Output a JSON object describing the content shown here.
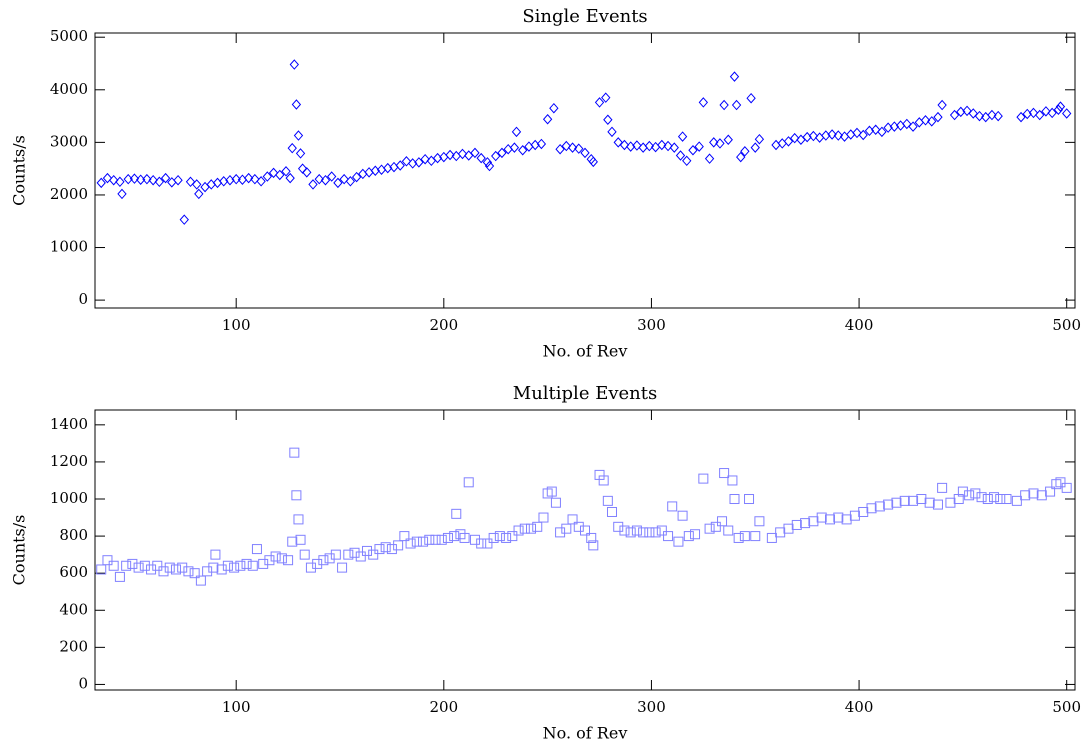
{
  "chart_data": [
    {
      "type": "scatter",
      "title": "Single Events",
      "xlabel": "No. of Rev",
      "ylabel": "Counts/s",
      "color": "#0000ff",
      "marker": "diamond",
      "xlim": [
        32,
        504
      ],
      "xticks": [
        100,
        200,
        300,
        400,
        500
      ],
      "ylim": [
        -150,
        5080
      ],
      "yticks": [
        0,
        1000,
        2000,
        3000,
        4000,
        5000
      ],
      "x": [
        35,
        38,
        41,
        44,
        45,
        48,
        51,
        54,
        57,
        60,
        63,
        66,
        69,
        72,
        75,
        78,
        81,
        82,
        85,
        88,
        91,
        94,
        97,
        100,
        103,
        106,
        109,
        112,
        115,
        118,
        121,
        124,
        126,
        127,
        128,
        129,
        130,
        131,
        132,
        134,
        137,
        140,
        143,
        146,
        149,
        152,
        155,
        158,
        161,
        164,
        167,
        170,
        173,
        176,
        179,
        182,
        185,
        188,
        191,
        194,
        197,
        200,
        203,
        206,
        209,
        212,
        215,
        218,
        221,
        222,
        225,
        228,
        231,
        234,
        235,
        238,
        241,
        244,
        247,
        250,
        253,
        256,
        259,
        262,
        265,
        268,
        271,
        272,
        275,
        278,
        279,
        281,
        284,
        287,
        290,
        293,
        296,
        299,
        302,
        305,
        308,
        311,
        314,
        315,
        317,
        320,
        323,
        325,
        328,
        330,
        333,
        335,
        337,
        340,
        341,
        343,
        345,
        348,
        350,
        352,
        360,
        363,
        366,
        369,
        372,
        375,
        378,
        381,
        384,
        387,
        390,
        393,
        396,
        399,
        402,
        405,
        408,
        411,
        414,
        417,
        420,
        423,
        426,
        429,
        432,
        435,
        438,
        440,
        446,
        449,
        452,
        455,
        458,
        461,
        464,
        467,
        478,
        481,
        484,
        487,
        490,
        493,
        496,
        497,
        500
      ],
      "values": [
        2230,
        2320,
        2280,
        2250,
        2020,
        2300,
        2310,
        2290,
        2300,
        2280,
        2250,
        2320,
        2240,
        2280,
        1530,
        2250,
        2200,
        2020,
        2150,
        2200,
        2230,
        2260,
        2280,
        2300,
        2290,
        2320,
        2300,
        2260,
        2350,
        2420,
        2380,
        2450,
        2320,
        2890,
        4480,
        3720,
        3130,
        2790,
        2500,
        2430,
        2200,
        2300,
        2280,
        2350,
        2230,
        2300,
        2260,
        2340,
        2400,
        2430,
        2460,
        2480,
        2510,
        2530,
        2560,
        2640,
        2600,
        2620,
        2680,
        2650,
        2700,
        2720,
        2760,
        2740,
        2780,
        2750,
        2800,
        2700,
        2620,
        2550,
        2740,
        2800,
        2870,
        2900,
        3200,
        2850,
        2920,
        2950,
        2970,
        3440,
        3650,
        2870,
        2930,
        2900,
        2880,
        2800,
        2680,
        2630,
        3760,
        3850,
        3430,
        3200,
        3000,
        2950,
        2920,
        2940,
        2900,
        2930,
        2910,
        2950,
        2930,
        2900,
        2750,
        3110,
        2650,
        2850,
        2920,
        3760,
        2690,
        3000,
        2980,
        3710,
        3050,
        4250,
        3710,
        2720,
        2830,
        3840,
        2900,
        3060,
        2950,
        2980,
        3020,
        3080,
        3050,
        3100,
        3120,
        3090,
        3130,
        3150,
        3130,
        3110,
        3150,
        3180,
        3140,
        3220,
        3240,
        3200,
        3280,
        3300,
        3320,
        3350,
        3300,
        3380,
        3420,
        3400,
        3480,
        3710,
        3520,
        3580,
        3600,
        3550,
        3500,
        3480,
        3520,
        3500,
        3480,
        3540,
        3560,
        3520,
        3590,
        3560,
        3620,
        3680,
        3550
      ]
    },
    {
      "type": "scatter",
      "title": "Multiple Events",
      "xlabel": "No. of Rev",
      "ylabel": "Counts/s",
      "color": "#8080ff",
      "marker": "square",
      "xlim": [
        32,
        504
      ],
      "xticks": [
        100,
        200,
        300,
        400,
        500
      ],
      "ylim": [
        -30,
        1480
      ],
      "yticks": [
        0,
        200,
        400,
        600,
        800,
        1000,
        1200,
        1400
      ],
      "x": [
        35,
        38,
        41,
        44,
        47,
        50,
        53,
        56,
        59,
        62,
        65,
        68,
        71,
        74,
        77,
        80,
        83,
        86,
        89,
        90,
        93,
        96,
        99,
        102,
        105,
        108,
        110,
        113,
        116,
        119,
        122,
        125,
        127,
        128,
        129,
        130,
        131,
        133,
        136,
        139,
        142,
        145,
        148,
        151,
        154,
        157,
        160,
        163,
        166,
        169,
        172,
        175,
        178,
        181,
        184,
        187,
        190,
        193,
        196,
        199,
        202,
        205,
        206,
        208,
        210,
        212,
        215,
        218,
        221,
        224,
        227,
        230,
        233,
        236,
        239,
        242,
        245,
        248,
        250,
        252,
        254,
        256,
        259,
        262,
        265,
        268,
        271,
        272,
        275,
        277,
        279,
        281,
        284,
        287,
        290,
        293,
        296,
        299,
        302,
        305,
        308,
        310,
        313,
        315,
        318,
        321,
        325,
        328,
        331,
        334,
        335,
        337,
        339,
        340,
        342,
        345,
        347,
        350,
        352,
        358,
        362,
        366,
        370,
        374,
        378,
        382,
        386,
        390,
        394,
        398,
        402,
        406,
        410,
        414,
        418,
        422,
        426,
        430,
        434,
        438,
        440,
        444,
        448,
        450,
        453,
        456,
        459,
        462,
        465,
        468,
        471,
        476,
        480,
        484,
        488,
        492,
        495,
        497,
        500
      ],
      "values": [
        620,
        670,
        640,
        580,
        640,
        650,
        630,
        640,
        620,
        640,
        610,
        630,
        620,
        630,
        610,
        600,
        560,
        610,
        630,
        700,
        620,
        640,
        630,
        640,
        650,
        640,
        730,
        650,
        670,
        690,
        680,
        670,
        770,
        1250,
        1020,
        890,
        780,
        700,
        630,
        650,
        670,
        680,
        700,
        630,
        700,
        710,
        690,
        720,
        700,
        730,
        740,
        730,
        750,
        800,
        760,
        770,
        770,
        780,
        780,
        780,
        790,
        800,
        920,
        810,
        790,
        1090,
        780,
        760,
        760,
        790,
        800,
        790,
        800,
        830,
        840,
        840,
        850,
        900,
        1030,
        1040,
        980,
        820,
        840,
        890,
        850,
        830,
        790,
        750,
        1130,
        1100,
        990,
        930,
        850,
        830,
        820,
        830,
        820,
        820,
        820,
        830,
        800,
        960,
        770,
        910,
        800,
        810,
        1110,
        840,
        850,
        880,
        1140,
        830,
        1100,
        1000,
        790,
        800,
        1000,
        800,
        880,
        790,
        820,
        840,
        860,
        870,
        880,
        900,
        890,
        900,
        890,
        910,
        930,
        950,
        960,
        970,
        980,
        990,
        990,
        1000,
        980,
        970,
        1060,
        980,
        1000,
        1040,
        1020,
        1030,
        1010,
        1000,
        1010,
        1000,
        1000,
        990,
        1020,
        1030,
        1020,
        1040,
        1080,
        1090,
        1060
      ]
    }
  ]
}
